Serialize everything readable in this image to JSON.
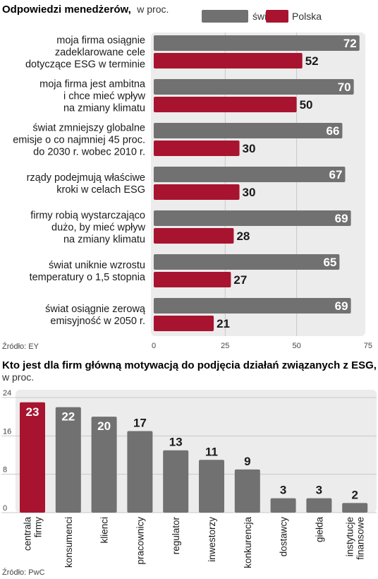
{
  "colors": {
    "world": "#717171",
    "poland": "#a8142f",
    "panel": "#ececec",
    "grid": "#c8c8c8"
  },
  "chart_data": [
    {
      "type": "bar",
      "orientation": "horizontal",
      "title": "Odpowiedzi menedżerów,",
      "subtitle": "w proc.",
      "source": "Źródło: EY",
      "legend_placement": "top-right",
      "xlim": [
        0,
        75
      ],
      "xticks": [
        "0",
        "25",
        "50",
        "75"
      ],
      "categories": [
        [
          "moja firma osiągnie",
          "zadeklarowane cele",
          "dotyczące ESG w terminie"
        ],
        [
          "moja firma jest ambitna",
          "i chce mieć wpływ",
          "na zmiany klimatu"
        ],
        [
          "świat zmniejszy globalne",
          "emisje o co najmniej 45 proc.",
          "do 2030 r. wobec 2010 r."
        ],
        [
          "rządy podejmują właściwe",
          "kroki w celach ESG"
        ],
        [
          "firmy robią wystarczająco",
          "dużo, by mieć wpływ",
          "na zmiany klimatu"
        ],
        [
          "świat uniknie wzrostu",
          "temperatury o 1,5 stopnia"
        ],
        [
          "świat osiągnie zerową",
          "emisyjność w 2050 r."
        ]
      ],
      "series": [
        {
          "name": "świat",
          "values": [
            72,
            70,
            66,
            67,
            69,
            65,
            69
          ]
        },
        {
          "name": "Polska",
          "values": [
            52,
            50,
            30,
            30,
            28,
            27,
            21
          ]
        }
      ]
    },
    {
      "type": "bar",
      "orientation": "vertical",
      "title": "Kto jest dla firm główną motywacją do podjęcia działań związanych z ESG,",
      "subtitle": "w proc.",
      "source": "Źródło: PwC",
      "ylim": [
        0,
        24
      ],
      "yticks": [
        "0",
        "8",
        "16",
        "24"
      ],
      "categories": [
        [
          "centrala",
          "firmy"
        ],
        [
          "konsumenci"
        ],
        [
          "klienci"
        ],
        [
          "pracownicy"
        ],
        [
          "regulator"
        ],
        [
          "inwestorzy"
        ],
        [
          "konkurencja"
        ],
        [
          "dostawcy"
        ],
        [
          "giełda"
        ],
        [
          "instytucje",
          "finansowe"
        ]
      ],
      "values": [
        23,
        22,
        20,
        17,
        13,
        11,
        9,
        3,
        3,
        2
      ],
      "highlight_index": 0
    }
  ]
}
